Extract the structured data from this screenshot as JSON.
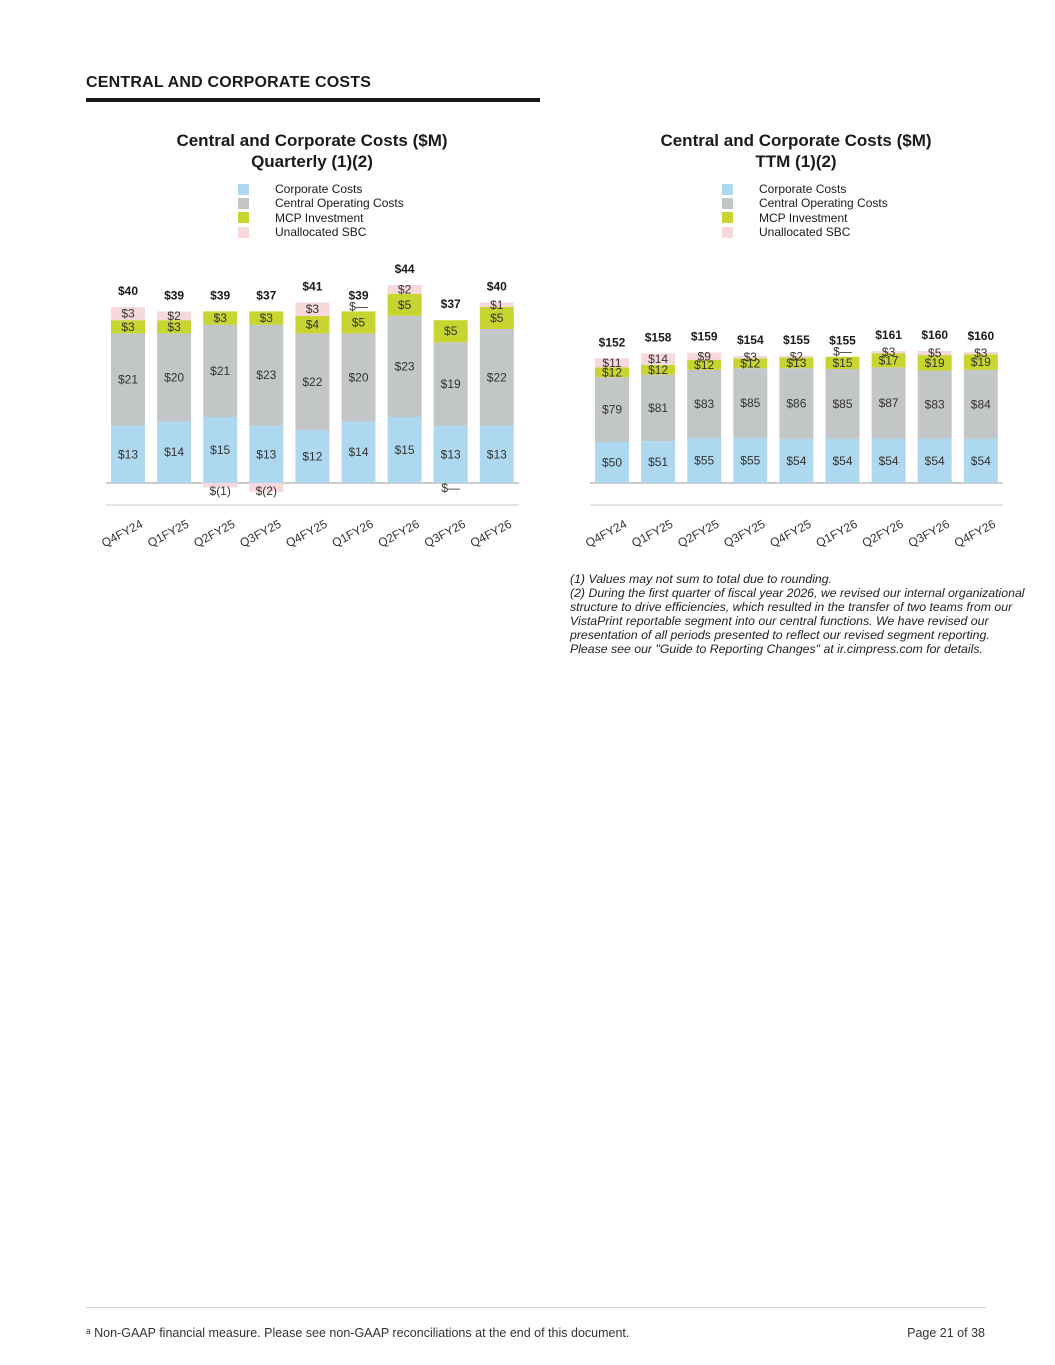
{
  "page": {
    "section_title": "CENTRAL AND CORPORATE COSTS",
    "footnotes": [
      "(1) Values may not sum to total due to rounding.",
      "(2) During the first quarter of fiscal year 2026, we revised our internal organizational structure to drive efficiencies, which resulted in the transfer of two teams from our VistaPrint reportable segment into our central functions. We have revised our presentation of all periods presented to reflect our revised segment reporting. Please see our \"Guide to Reporting Changes\" at ir.cimpress.com for details."
    ],
    "footer_note": "ᵃ Non-GAAP financial measure. Please see non-GAAP reconciliations at the end of this document.",
    "page_number": "Page 21 of 38"
  },
  "colors": {
    "corporate": "#aed8ef",
    "central": "#c3c6c7",
    "mcp": "#c8d42f",
    "sbc": "#f7d9dc",
    "axis": "#a8a8a8"
  },
  "chart_data": [
    {
      "type": "bar",
      "stacked": true,
      "title": "Central and Corporate Costs ($M)",
      "subtitle": "Quarterly (1)(2)",
      "legend_position": "top",
      "categories": [
        "Q4FY24",
        "Q1FY25",
        "Q2FY25",
        "Q3FY25",
        "Q4FY25",
        "Q1FY26",
        "Q2FY26",
        "Q3FY26",
        "Q4FY26"
      ],
      "series": [
        {
          "name": "Corporate Costs",
          "color_key": "corporate",
          "values": [
            13,
            14,
            15,
            13,
            12,
            14,
            15,
            13,
            13
          ],
          "labels": [
            "$13",
            "$14",
            "$15",
            "$13",
            "$12",
            "$14",
            "$15",
            "$13",
            "$13"
          ]
        },
        {
          "name": "Central Operating Costs",
          "color_key": "central",
          "values": [
            21,
            20,
            21,
            23,
            22,
            20,
            23,
            19,
            22
          ],
          "labels": [
            "$21",
            "$20",
            "$21",
            "$23",
            "$22",
            "$20",
            "$23",
            "$19",
            "$22"
          ]
        },
        {
          "name": "MCP Investment",
          "color_key": "mcp",
          "values": [
            3,
            3,
            3,
            3,
            4,
            5,
            5,
            5,
            5
          ],
          "labels": [
            "$3",
            "$3",
            "$3",
            "$3",
            "$4",
            "$5",
            "$5",
            "$5",
            "$5"
          ]
        },
        {
          "name": "Unallocated SBC",
          "color_key": "sbc",
          "values": [
            3,
            2,
            -1,
            -2,
            3,
            0,
            2,
            0,
            1
          ],
          "labels": [
            "$3",
            "$2",
            "$(1)",
            "$(2)",
            "$3",
            "$—",
            "$2",
            "$—",
            "$1"
          ]
        }
      ],
      "totals": [
        "$40",
        "$39",
        "$39",
        "$37",
        "$41",
        "$39",
        "$44",
        "$37",
        "$40"
      ],
      "ylim": [
        -2,
        45
      ]
    },
    {
      "type": "bar",
      "stacked": true,
      "title": "Central and Corporate Costs ($M)",
      "subtitle": "TTM (1)(2)",
      "legend_position": "top",
      "categories": [
        "Q4FY24",
        "Q1FY25",
        "Q2FY25",
        "Q3FY25",
        "Q4FY25",
        "Q1FY26",
        "Q2FY26",
        "Q3FY26",
        "Q4FY26"
      ],
      "series": [
        {
          "name": "Corporate Costs",
          "color_key": "corporate",
          "values": [
            50,
            51,
            55,
            55,
            54,
            54,
            54,
            54,
            54
          ],
          "labels": [
            "$50",
            "$51",
            "$55",
            "$55",
            "$54",
            "$54",
            "$54",
            "$54",
            "$54"
          ]
        },
        {
          "name": "Central Operating Costs",
          "color_key": "central",
          "values": [
            79,
            81,
            83,
            85,
            86,
            85,
            87,
            83,
            84
          ],
          "labels": [
            "$79",
            "$81",
            "$83",
            "$85",
            "$86",
            "$85",
            "$87",
            "$83",
            "$84"
          ]
        },
        {
          "name": "MCP Investment",
          "color_key": "mcp",
          "values": [
            12,
            12,
            12,
            12,
            13,
            15,
            17,
            19,
            19
          ],
          "labels": [
            "$12",
            "$12",
            "$12",
            "$12",
            "$13",
            "$15",
            "$17",
            "$19",
            "$19"
          ]
        },
        {
          "name": "Unallocated SBC",
          "color_key": "sbc",
          "values": [
            11,
            14,
            9,
            3,
            2,
            0,
            3,
            5,
            3
          ],
          "labels": [
            "$11",
            "$14",
            "$9",
            "$3",
            "$2",
            "$—",
            "$3",
            "$5",
            "$3"
          ]
        }
      ],
      "totals": [
        "$152",
        "$158",
        "$159",
        "$154",
        "$155",
        "$155",
        "$161",
        "$160",
        "$160"
      ],
      "ylim": [
        0,
        165
      ]
    }
  ]
}
